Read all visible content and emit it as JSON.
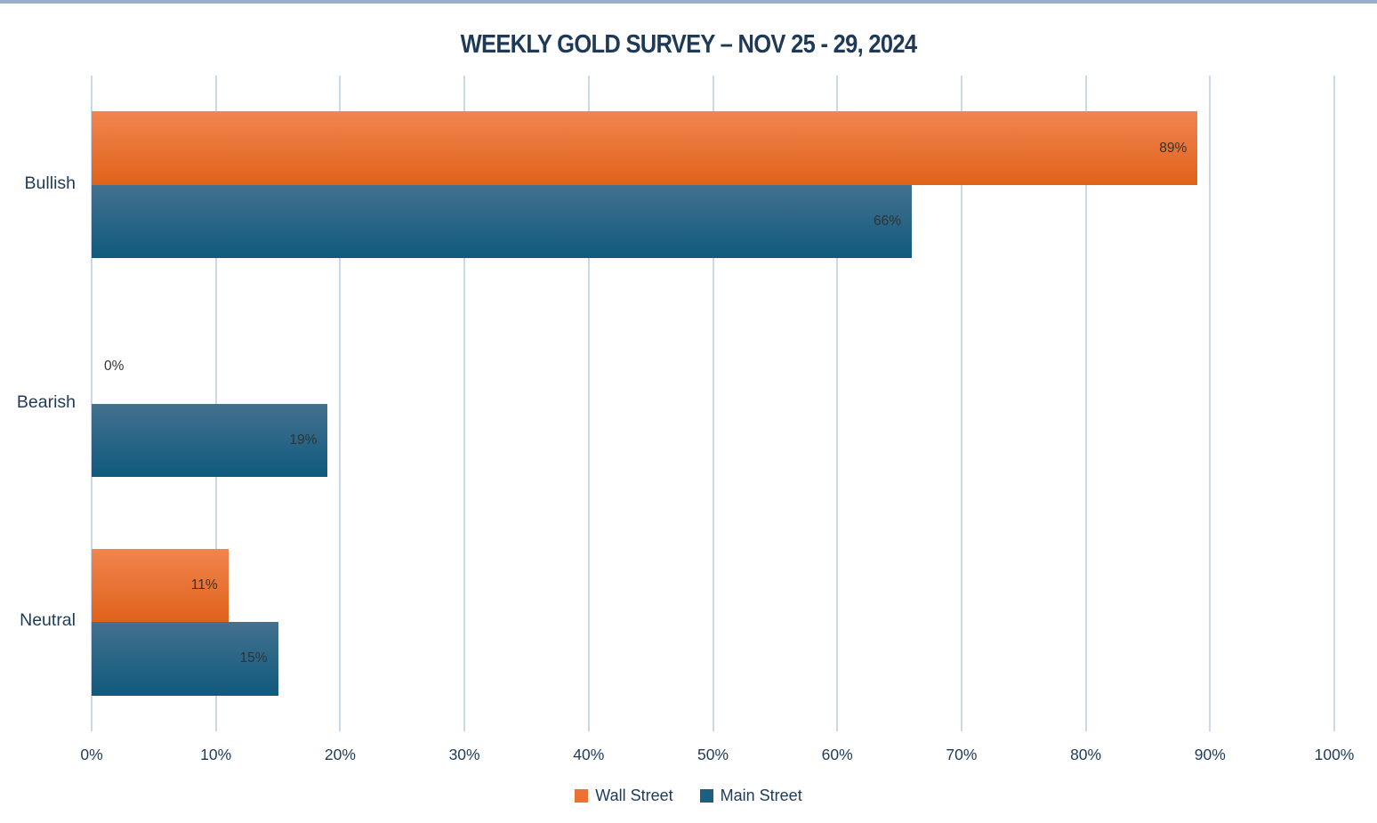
{
  "page": {
    "background": "#FFFFFF",
    "top_border_color": "#98AFCB"
  },
  "chart_data": {
    "type": "bar",
    "orientation": "horizontal",
    "title": "WEEKLY GOLD SURVEY – NOV 25 - 29, 2024",
    "categories": [
      "Bullish",
      "Bearish",
      "Neutral"
    ],
    "series": [
      {
        "name": "Wall Street",
        "values": [
          89,
          0,
          11
        ],
        "labels": [
          "89%",
          "0%",
          "11%"
        ],
        "color_top": "#F0854F",
        "color_bottom": "#E0621A",
        "legend_color": "#ED7132"
      },
      {
        "name": "Main Street",
        "values": [
          66,
          19,
          15
        ],
        "labels": [
          "66%",
          "19%",
          "15%"
        ],
        "color_top": "#44718F",
        "color_bottom": "#0F5A7D",
        "legend_color": "#1C5F81"
      }
    ],
    "x_axis": {
      "min": 0,
      "max": 100,
      "step": 10,
      "tick_labels": [
        "0%",
        "10%",
        "20%",
        "30%",
        "40%",
        "50%",
        "60%",
        "70%",
        "80%",
        "90%",
        "100%"
      ]
    },
    "grid": true,
    "legend_position": "bottom",
    "colors": {
      "title_text": "#1F3A58",
      "axis_text": "#1F3A58",
      "category_text": "#1F3A58",
      "legend_text": "#1F3A58",
      "gridline": "#C9D9EA",
      "data_label": "#333333"
    }
  }
}
